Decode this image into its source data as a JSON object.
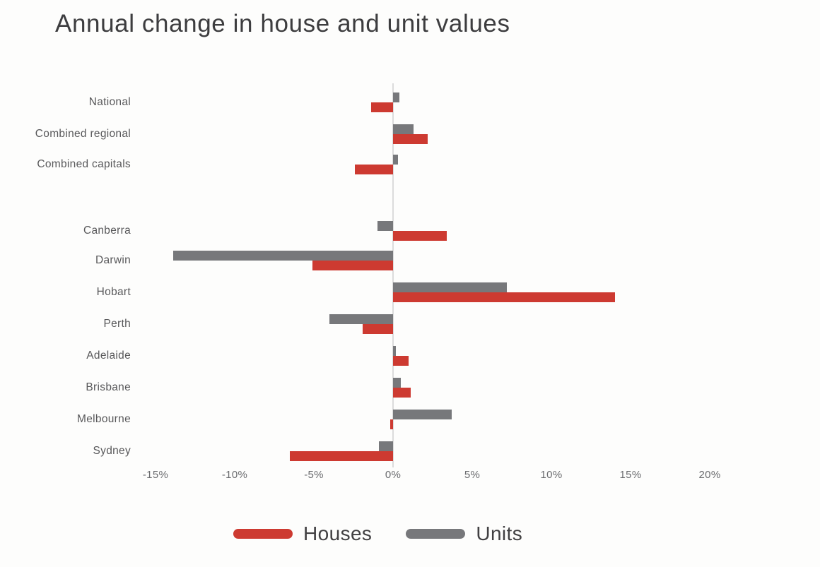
{
  "title": "Annual change in house and unit values",
  "chart_data": {
    "type": "bar",
    "orientation": "horizontal",
    "title": "Annual change in house and unit values",
    "xlabel": "",
    "ylabel": "",
    "unit": "%",
    "grid": false,
    "legend_position": "bottom",
    "xlim": [
      -15,
      20
    ],
    "x_tick_labels": [
      "-15%",
      "-10%",
      "-5%",
      "0%",
      "5%",
      "10%",
      "15%",
      "20%"
    ],
    "x_tick_values": [
      -15,
      -10,
      -5,
      0,
      5,
      10,
      15,
      20
    ],
    "categories": [
      "National",
      "Combined regional",
      "Combined capitals",
      "Canberra",
      "Darwin",
      "Hobart",
      "Perth",
      "Adelaide",
      "Brisbane",
      "Melbourne",
      "Sydney"
    ],
    "group_break_after_index": 2,
    "series": [
      {
        "name": "Houses",
        "color": "#cd3a31",
        "values": [
          -1.4,
          2.2,
          -2.4,
          3.4,
          -5.1,
          14.0,
          -1.9,
          1.0,
          1.1,
          -0.2,
          -6.5
        ]
      },
      {
        "name": "Units",
        "color": "#77787b",
        "values": [
          0.4,
          1.3,
          0.3,
          -1.0,
          -13.9,
          7.2,
          -4.0,
          0.2,
          0.5,
          3.7,
          -0.9
        ]
      }
    ]
  },
  "legend": {
    "items": [
      {
        "label": "Houses",
        "color": "#cd3a31"
      },
      {
        "label": "Units",
        "color": "#77787b"
      }
    ]
  },
  "colors": {
    "houses": "#cd3a31",
    "units": "#77787b",
    "axis_line": "#dcdcdc",
    "title_text": "#3d3d3f",
    "label_text": "#58585a",
    "tick_text": "#6b6c6f",
    "background": "#fdfdfc"
  }
}
